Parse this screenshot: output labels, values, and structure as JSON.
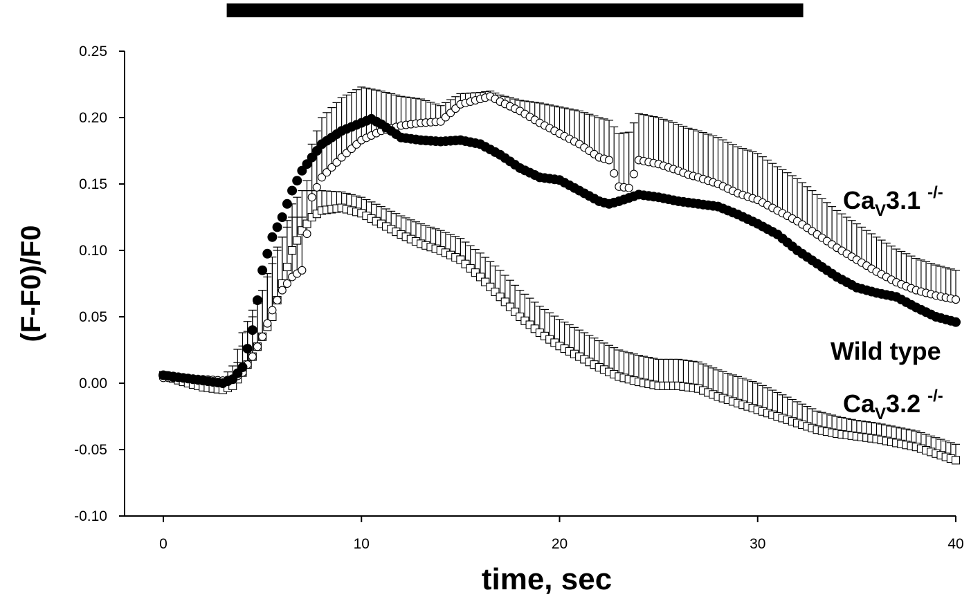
{
  "chart_data": {
    "type": "scatter",
    "xlabel": "time, sec",
    "ylabel": "(F-F0)/F0",
    "xlim": [
      -2,
      40
    ],
    "ylim": [
      -0.1,
      0.25
    ],
    "x_ticks": [
      0,
      10,
      20,
      30,
      40
    ],
    "x_tick_labels": [
      "0",
      "10",
      "20",
      "30",
      "40"
    ],
    "y_ticks": [
      -0.1,
      -0.05,
      0.0,
      0.05,
      0.1,
      0.15,
      0.2,
      0.25
    ],
    "y_tick_labels": [
      "-0.10",
      "-0.05",
      "0.00",
      "0.05",
      "0.10",
      "0.15",
      "0.20",
      "0.25"
    ],
    "stimulus_bar": {
      "start": 3.2,
      "end": 32.3
    },
    "error_bars": "upward (+SEM), drawn on CaV3.1 and CaV3.2 series",
    "series": [
      {
        "name": "Wild type",
        "marker": "filled-circle",
        "color": "#000000",
        "x": [
          0,
          1,
          2,
          3,
          3.5,
          4,
          4.5,
          5,
          5.5,
          6,
          6.5,
          7,
          7.5,
          8,
          9,
          10,
          10.5,
          11,
          12,
          13,
          14,
          15,
          16,
          17,
          18,
          19,
          20,
          21,
          22,
          22.5,
          23,
          24,
          25,
          26,
          27,
          28,
          29,
          30,
          31,
          32,
          33,
          34,
          35,
          36,
          37,
          38,
          39,
          40
        ],
        "y": [
          0.006,
          0.004,
          0.002,
          0.0,
          0.003,
          0.012,
          0.04,
          0.085,
          0.11,
          0.125,
          0.145,
          0.16,
          0.17,
          0.18,
          0.19,
          0.196,
          0.199,
          0.195,
          0.185,
          0.183,
          0.182,
          0.183,
          0.18,
          0.172,
          0.162,
          0.155,
          0.153,
          0.145,
          0.137,
          0.135,
          0.137,
          0.142,
          0.14,
          0.137,
          0.135,
          0.133,
          0.127,
          0.12,
          0.112,
          0.1,
          0.09,
          0.08,
          0.072,
          0.068,
          0.065,
          0.057,
          0.05,
          0.046
        ],
        "err": []
      },
      {
        "name": "CaV3.1 -/-",
        "marker": "open-circle",
        "color": "#000000",
        "x": [
          0,
          1,
          2,
          3,
          3.5,
          4,
          4.5,
          5,
          5.5,
          6,
          6.5,
          7,
          7.5,
          8,
          9,
          10,
          11,
          12,
          13,
          14,
          15,
          16,
          16.5,
          17,
          18,
          19,
          20,
          21,
          22,
          22.5,
          23,
          23.5,
          24,
          25,
          26,
          26.5,
          27,
          28,
          29,
          30,
          31,
          32,
          33,
          34,
          35,
          36,
          37,
          38,
          39,
          40
        ],
        "y": [
          0.004,
          0.004,
          0.003,
          0.002,
          0.003,
          0.008,
          0.02,
          0.035,
          0.055,
          0.07,
          0.08,
          0.085,
          0.14,
          0.155,
          0.17,
          0.183,
          0.19,
          0.194,
          0.196,
          0.197,
          0.21,
          0.214,
          0.216,
          0.212,
          0.205,
          0.196,
          0.188,
          0.18,
          0.17,
          0.168,
          0.148,
          0.147,
          0.168,
          0.165,
          0.16,
          0.157,
          0.155,
          0.15,
          0.143,
          0.138,
          0.13,
          0.122,
          0.112,
          0.102,
          0.093,
          0.084,
          0.076,
          0.07,
          0.066,
          0.063
        ],
        "err": [
          0.002,
          0.002,
          0.002,
          0.002,
          0.01,
          0.03,
          0.035,
          0.035,
          0.04,
          0.04,
          0.045,
          0.04,
          0.04,
          0.045,
          0.045,
          0.04,
          0.03,
          0.022,
          0.018,
          0.012,
          0.008,
          0.005,
          0.004,
          0.005,
          0.008,
          0.015,
          0.02,
          0.025,
          0.03,
          0.03,
          0.04,
          0.042,
          0.035,
          0.035,
          0.035,
          0.035,
          0.035,
          0.035,
          0.035,
          0.035,
          0.033,
          0.032,
          0.03,
          0.028,
          0.027,
          0.026,
          0.025,
          0.024,
          0.023,
          0.022
        ]
      },
      {
        "name": "CaV3.2 -/-",
        "marker": "open-square",
        "color": "#000000",
        "x": [
          0,
          1,
          2,
          3,
          3.5,
          4,
          4.5,
          5,
          5.5,
          6,
          6.5,
          7,
          7.5,
          8,
          9,
          10,
          11,
          12,
          13,
          14,
          15,
          16,
          17,
          18,
          19,
          20,
          21,
          22,
          23,
          24,
          25,
          26,
          27,
          28,
          29,
          30,
          31,
          32,
          33,
          34,
          35,
          36,
          37,
          38,
          39,
          40
        ],
        "y": [
          0.006,
          0.001,
          -0.003,
          -0.005,
          -0.002,
          0.008,
          0.02,
          0.035,
          0.05,
          0.075,
          0.1,
          0.115,
          0.125,
          0.13,
          0.132,
          0.128,
          0.12,
          0.112,
          0.105,
          0.1,
          0.093,
          0.08,
          0.065,
          0.05,
          0.038,
          0.028,
          0.02,
          0.012,
          0.005,
          0.001,
          -0.002,
          -0.002,
          -0.004,
          -0.01,
          -0.015,
          -0.02,
          -0.025,
          -0.03,
          -0.035,
          -0.038,
          -0.04,
          -0.042,
          -0.045,
          -0.048,
          -0.053,
          -0.058
        ],
        "err": [
          0.002,
          0.002,
          0.002,
          0.002,
          0.005,
          0.02,
          0.03,
          0.035,
          0.04,
          0.035,
          0.035,
          0.03,
          0.02,
          0.015,
          0.012,
          0.012,
          0.013,
          0.014,
          0.015,
          0.015,
          0.016,
          0.018,
          0.02,
          0.02,
          0.02,
          0.02,
          0.02,
          0.02,
          0.02,
          0.02,
          0.02,
          0.02,
          0.02,
          0.02,
          0.02,
          0.02,
          0.018,
          0.016,
          0.014,
          0.013,
          0.012,
          0.012,
          0.012,
          0.012,
          0.012,
          0.012
        ]
      }
    ],
    "annotations": {
      "cav31": {
        "prefix": "Ca",
        "sub": "V",
        "main": "3.1",
        "sup": "-/-"
      },
      "wild_type": "Wild type",
      "cav32": {
        "prefix": "Ca",
        "sub": "V",
        "main": "3.2",
        "sup": "-/-"
      }
    }
  }
}
